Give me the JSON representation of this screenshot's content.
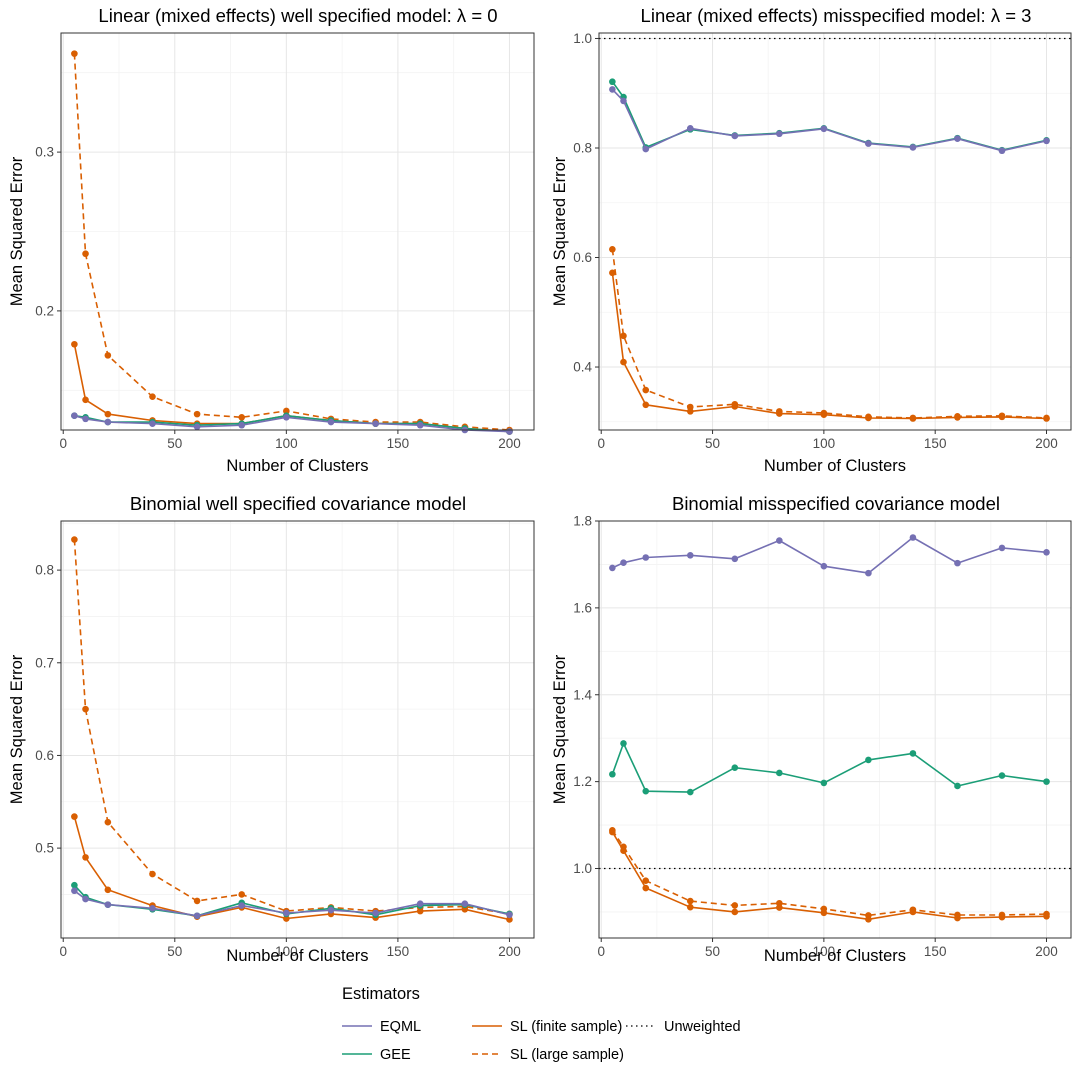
{
  "chart_data": [
    {
      "type": "line",
      "title": "Linear (mixed effects) well specified model: λ = 0",
      "xlabel": "Number of Clusters",
      "ylabel": "Mean Squared Error",
      "x": [
        5,
        10,
        20,
        40,
        60,
        80,
        100,
        120,
        140,
        160,
        180,
        200
      ],
      "xlim": [
        -1,
        211
      ],
      "ylim": [
        0.125,
        0.375
      ],
      "xticks": [
        0,
        50,
        100,
        150,
        200
      ],
      "yticks": [
        0.2,
        0.3
      ],
      "ytick_labels": [
        "0.2",
        "0.3"
      ],
      "grid": true,
      "series": [
        {
          "name": "EQML",
          "values": [
            0.134,
            0.132,
            0.13,
            0.129,
            0.127,
            0.128,
            0.133,
            0.13,
            0.129,
            0.128,
            0.125,
            0.124
          ]
        },
        {
          "name": "GEE",
          "values": [
            0.134,
            0.133,
            0.13,
            0.13,
            0.128,
            0.129,
            0.134,
            0.131,
            0.129,
            0.129,
            0.126,
            0.124
          ]
        },
        {
          "name": "SL (finite sample)",
          "values": [
            0.179,
            0.144,
            0.135,
            0.131,
            0.129,
            0.129,
            0.134,
            0.131,
            0.129,
            0.129,
            0.126,
            0.124
          ]
        },
        {
          "name": "SL (large sample)",
          "values": [
            0.362,
            0.236,
            0.172,
            0.146,
            0.135,
            0.133,
            0.137,
            0.132,
            0.13,
            0.13,
            0.127,
            0.125
          ]
        }
      ]
    },
    {
      "type": "line",
      "title": "Linear (mixed effects) misspecified model: λ = 3",
      "xlabel": "Number of Clusters",
      "ylabel": "Mean Squared Error",
      "x": [
        5,
        10,
        20,
        40,
        60,
        80,
        100,
        120,
        140,
        160,
        180,
        200
      ],
      "xlim": [
        -1,
        211
      ],
      "ylim": [
        0.285,
        1.01
      ],
      "xticks": [
        0,
        50,
        100,
        150,
        200
      ],
      "yticks": [
        0.4,
        0.6,
        0.8,
        1.0
      ],
      "ytick_labels": [
        "0.4",
        "0.6",
        "0.8",
        "1.0"
      ],
      "hline": 1.0,
      "grid": true,
      "series": [
        {
          "name": "EQML",
          "values": [
            0.907,
            0.886,
            0.798,
            0.836,
            0.822,
            0.826,
            0.835,
            0.808,
            0.801,
            0.817,
            0.795,
            0.813
          ]
        },
        {
          "name": "GEE",
          "values": [
            0.921,
            0.893,
            0.801,
            0.834,
            0.823,
            0.827,
            0.836,
            0.809,
            0.802,
            0.818,
            0.796,
            0.814
          ]
        },
        {
          "name": "SL (finite sample)",
          "values": [
            0.572,
            0.409,
            0.331,
            0.319,
            0.328,
            0.315,
            0.313,
            0.307,
            0.306,
            0.308,
            0.309,
            0.306
          ]
        },
        {
          "name": "SL (large sample)",
          "values": [
            0.615,
            0.457,
            0.358,
            0.327,
            0.332,
            0.319,
            0.316,
            0.309,
            0.307,
            0.31,
            0.311,
            0.307
          ]
        }
      ]
    },
    {
      "type": "line",
      "title": "Binomial well specified covariance model",
      "xlabel": "Number of Clusters",
      "ylabel": "Mean Squared Error",
      "x": [
        5,
        10,
        20,
        40,
        60,
        80,
        100,
        120,
        140,
        160,
        180,
        200
      ],
      "xlim": [
        -1,
        211
      ],
      "ylim": [
        0.403,
        0.853
      ],
      "xticks": [
        0,
        50,
        100,
        150,
        200
      ],
      "yticks": [
        0.5,
        0.6,
        0.7,
        0.8
      ],
      "ytick_labels": [
        "0.5",
        "0.6",
        "0.7",
        "0.8"
      ],
      "grid": true,
      "series": [
        {
          "name": "EQML",
          "values": [
            0.454,
            0.445,
            0.439,
            0.435,
            0.427,
            0.438,
            0.43,
            0.433,
            0.43,
            0.44,
            0.44,
            0.428
          ]
        },
        {
          "name": "GEE",
          "values": [
            0.46,
            0.447,
            0.439,
            0.434,
            0.427,
            0.441,
            0.429,
            0.435,
            0.428,
            0.438,
            0.439,
            0.429
          ]
        },
        {
          "name": "SL (finite sample)",
          "values": [
            0.534,
            0.49,
            0.455,
            0.438,
            0.426,
            0.436,
            0.424,
            0.429,
            0.425,
            0.432,
            0.434,
            0.423
          ]
        },
        {
          "name": "SL (large sample)",
          "values": [
            0.833,
            0.65,
            0.528,
            0.472,
            0.443,
            0.45,
            0.432,
            0.436,
            0.432,
            0.436,
            0.437,
            0.429
          ]
        }
      ]
    },
    {
      "type": "line",
      "title": "Binomial misspecified covariance model",
      "xlabel": "Number of Clusters",
      "ylabel": "Mean Squared Error",
      "x": [
        5,
        10,
        20,
        40,
        60,
        80,
        100,
        120,
        140,
        160,
        180,
        200
      ],
      "xlim": [
        -1,
        211
      ],
      "ylim": [
        0.84,
        1.8
      ],
      "xticks": [
        0,
        50,
        100,
        150,
        200
      ],
      "yticks": [
        1.0,
        1.2,
        1.4,
        1.6,
        1.8
      ],
      "ytick_labels": [
        "1.0",
        "1.2",
        "1.4",
        "1.6",
        "1.8"
      ],
      "hline": 1.0,
      "grid": true,
      "series": [
        {
          "name": "EQML",
          "values": [
            1.692,
            1.704,
            1.716,
            1.721,
            1.713,
            1.755,
            1.696,
            1.68,
            1.762,
            1.703,
            1.738,
            1.728
          ]
        },
        {
          "name": "GEE",
          "values": [
            1.217,
            1.288,
            1.178,
            1.176,
            1.232,
            1.22,
            1.197,
            1.25,
            1.265,
            1.19,
            1.214,
            1.2
          ]
        },
        {
          "name": "SL (finite sample)",
          "values": [
            1.084,
            1.041,
            0.955,
            0.911,
            0.9,
            0.91,
            0.898,
            0.883,
            0.9,
            0.886,
            0.888,
            0.89
          ]
        },
        {
          "name": "SL (large sample)",
          "values": [
            1.088,
            1.05,
            0.972,
            0.925,
            0.915,
            0.92,
            0.907,
            0.892,
            0.905,
            0.893,
            0.893,
            0.895
          ]
        }
      ]
    }
  ],
  "legend": {
    "title": "Estimators",
    "items": [
      {
        "label": "EQML",
        "color": "#7570b3",
        "style": "solid"
      },
      {
        "label": "GEE",
        "color": "#1b9e77",
        "style": "solid"
      },
      {
        "label": "SL (finite sample)",
        "color": "#d95f02",
        "style": "solid"
      },
      {
        "label": "SL (large sample)",
        "color": "#d95f02",
        "style": "dashed"
      },
      {
        "label": "Unweighted",
        "color": "#000000",
        "style": "dotted"
      }
    ]
  },
  "series_colors": {
    "EQML": "#7570b3",
    "GEE": "#1b9e77",
    "SL (finite sample)": "#d95f02",
    "SL (large sample)": "#d95f02"
  },
  "series_dash": {
    "EQML": "",
    "GEE": "",
    "SL (finite sample)": "",
    "SL (large sample)": "6,4"
  }
}
